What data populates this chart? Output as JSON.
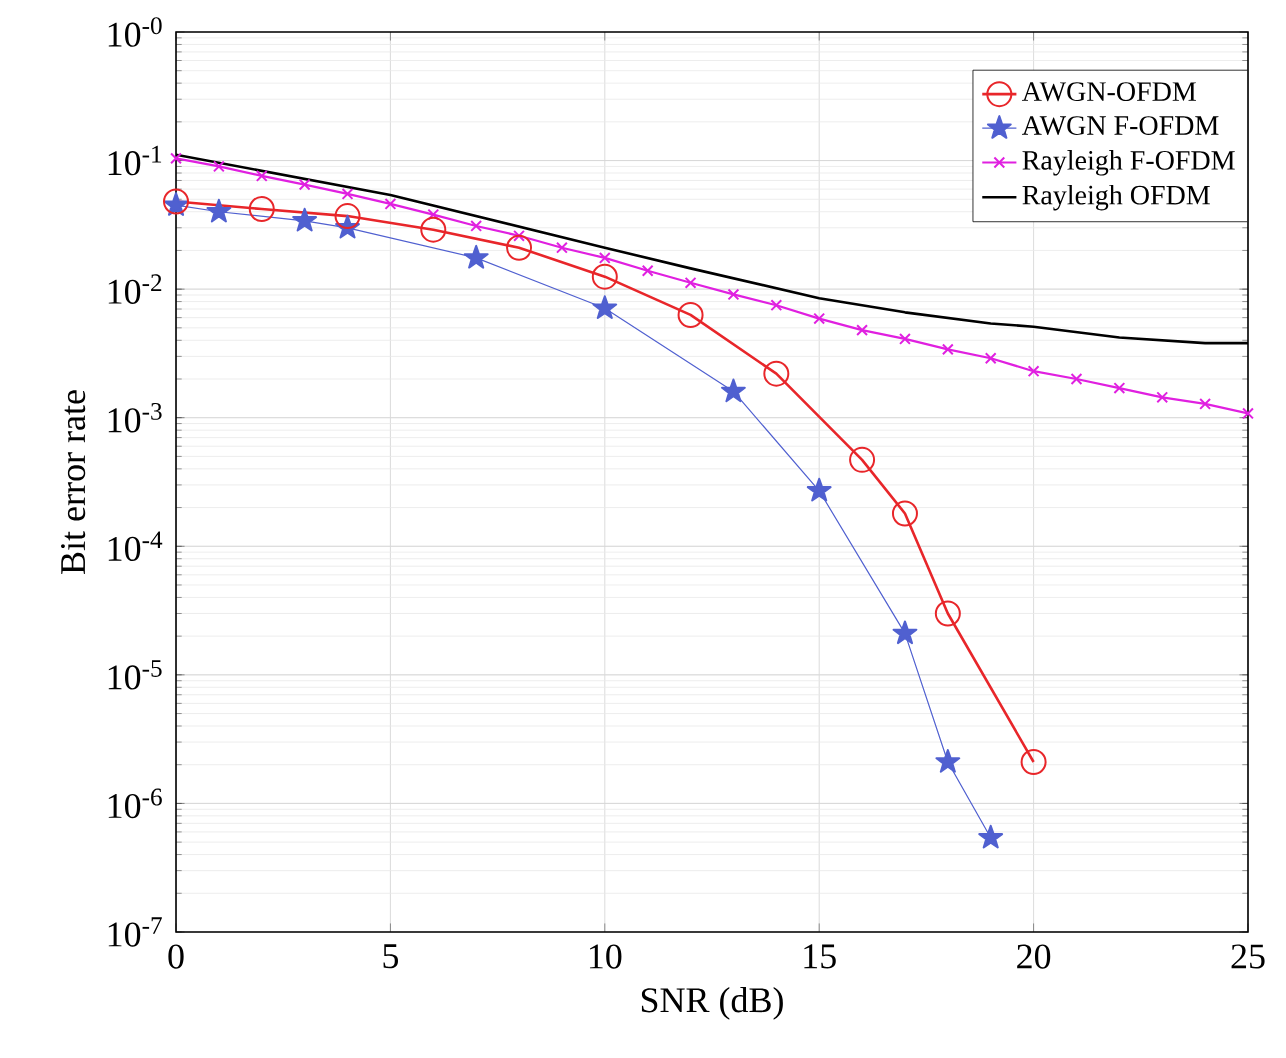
{
  "chart_data": {
    "type": "line",
    "xlabel": "SNR (dB)",
    "ylabel": "Bit error rate",
    "log": "y",
    "grid": true,
    "legend": "top right",
    "xlim": [
      0,
      25
    ],
    "xticks": [
      0,
      5,
      10,
      15,
      20,
      25
    ],
    "ylim": [
      1e-07,
      1
    ],
    "yticks": [
      {
        "value": 1e-07,
        "label": "10$^{-7}$"
      },
      {
        "value": 1e-06,
        "label": "10$^{-6}$"
      },
      {
        "value": 1e-05,
        "label": "10$^{-5}$"
      },
      {
        "value": 0.0001,
        "label": "10$^{-4}$"
      },
      {
        "value": 0.001,
        "label": "10$^{-3}$"
      },
      {
        "value": 0.01,
        "label": "10$^{-2}$"
      },
      {
        "value": 0.1,
        "label": "10$^{-1}$"
      },
      {
        "value": 1,
        "label": "10$^{-0}$"
      }
    ],
    "series": [
      {
        "name": "AWGN-OFDM",
        "color": "#e8262a",
        "marker": "circle",
        "x": [
          0,
          2,
          4,
          6,
          8,
          10,
          12,
          14,
          16,
          17,
          18,
          20
        ],
        "values": [
          0.048,
          0.042,
          0.037,
          0.029,
          0.021,
          0.0125,
          0.0063,
          0.0022,
          0.00047,
          0.00018,
          3e-05,
          2.1e-06
        ]
      },
      {
        "name": "AWGN F-OFDM",
        "color": "#5060d0",
        "marker": "star",
        "x": [
          0,
          1,
          3,
          4,
          7,
          10,
          13,
          15,
          17,
          18,
          19
        ],
        "values": [
          0.045,
          0.04,
          0.034,
          0.03,
          0.0175,
          0.0071,
          0.0016,
          0.00027,
          2.1e-05,
          2.1e-06,
          5.4e-07
        ]
      },
      {
        "name": "Rayleigh F-OFDM",
        "color": "#e020e0",
        "marker": "cross",
        "x": [
          0,
          1,
          2,
          3,
          4,
          5,
          6,
          7,
          8,
          9,
          10,
          11,
          12,
          13,
          14,
          15,
          16,
          17,
          18,
          19,
          20,
          21,
          22,
          23,
          24,
          25
        ],
        "values": [
          0.104,
          0.09,
          0.076,
          0.065,
          0.055,
          0.046,
          0.038,
          0.031,
          0.026,
          0.021,
          0.0175,
          0.0139,
          0.0112,
          0.0091,
          0.0075,
          0.0059,
          0.0048,
          0.0041,
          0.0034,
          0.0029,
          0.0023,
          0.002,
          0.0017,
          0.00144,
          0.00128,
          0.00108
        ]
      },
      {
        "name": "Rayleigh OFDM",
        "color": "#000000",
        "marker": "none",
        "x": [
          0,
          5,
          10,
          12,
          15,
          17,
          19,
          20,
          22,
          24,
          25
        ],
        "values": [
          0.111,
          0.054,
          0.021,
          0.0145,
          0.0085,
          0.0066,
          0.0054,
          0.0051,
          0.0042,
          0.0038,
          0.0038
        ]
      }
    ]
  }
}
